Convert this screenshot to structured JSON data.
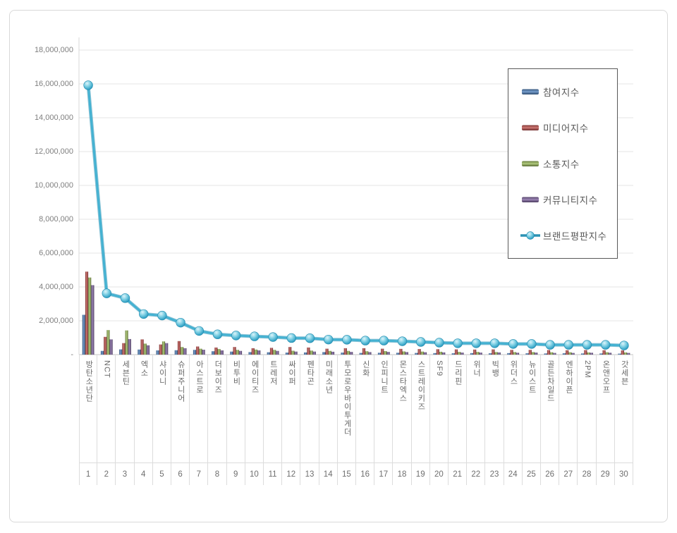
{
  "chart_data": {
    "type": "bar",
    "subtype": "grouped-bars-with-line",
    "title": "",
    "xlabel": "",
    "ylabel": "",
    "grid": true,
    "legend_position": "inside-right",
    "categories": [
      "방탄소년단",
      "NCT",
      "세븐틴",
      "엑소",
      "샤이니",
      "슈퍼주니어",
      "아스트로",
      "더보이즈",
      "비투비",
      "에이티즈",
      "트레저",
      "싸이퍼",
      "펜타곤",
      "미래소년",
      "투모로우바이투게더",
      "신화",
      "인피니트",
      "몬스타엑스",
      "스트레이키즈",
      "SF9",
      "드리핀",
      "위너",
      "빅뱅",
      "위더스",
      "뉴이스트",
      "골든차일드",
      "엔하이픈",
      "2PM",
      "온앤오프",
      "갓세븐"
    ],
    "ranks": [
      "1",
      "2",
      "3",
      "4",
      "5",
      "6",
      "7",
      "8",
      "9",
      "10",
      "11",
      "12",
      "13",
      "14",
      "15",
      "16",
      "17",
      "18",
      "19",
      "20",
      "21",
      "22",
      "23",
      "24",
      "25",
      "26",
      "27",
      "28",
      "29",
      "30"
    ],
    "series": [
      {
        "key": "participation",
        "name": "참여지수",
        "color": "#4f81bd",
        "type": "bar",
        "values": [
          2353080,
          220000,
          310000,
          300000,
          250000,
          260000,
          280000,
          200000,
          180000,
          150000,
          140000,
          120000,
          130000,
          150000,
          120000,
          100000,
          110000,
          110000,
          100000,
          90000,
          80000,
          90000,
          80000,
          90000,
          80000,
          70000,
          80000,
          70000,
          70000,
          60000
        ]
      },
      {
        "key": "media",
        "name": "미디어지수",
        "color": "#c0504d",
        "type": "bar",
        "values": [
          4904271,
          1050000,
          680000,
          900000,
          600000,
          800000,
          480000,
          420000,
          450000,
          380000,
          400000,
          450000,
          420000,
          350000,
          380000,
          380000,
          350000,
          340000,
          330000,
          320000,
          310000,
          300000,
          310000,
          280000,
          280000,
          270000,
          260000,
          270000,
          260000,
          250000
        ]
      },
      {
        "key": "communication",
        "name": "소통지수",
        "color": "#9bbb59",
        "type": "bar",
        "values": [
          4556161,
          1450000,
          1430000,
          650000,
          780000,
          450000,
          350000,
          330000,
          280000,
          300000,
          280000,
          230000,
          240000,
          220000,
          220000,
          200000,
          210000,
          190000,
          180000,
          170000,
          160000,
          160000,
          150000,
          150000,
          150000,
          140000,
          140000,
          130000,
          140000,
          130000
        ]
      },
      {
        "key": "community",
        "name": "커뮤니티지수",
        "color": "#8064a2",
        "type": "bar",
        "values": [
          4106228,
          900000,
          920000,
          550000,
          680000,
          380000,
          290000,
          250000,
          220000,
          250000,
          220000,
          180000,
          180000,
          170000,
          160000,
          150000,
          160000,
          150000,
          140000,
          130000,
          120000,
          120000,
          130000,
          110000,
          120000,
          100000,
          100000,
          110000,
          110000,
          100000
        ]
      },
      {
        "key": "brand-reputation",
        "name": "브랜드평판지수",
        "color": "#4bacc6",
        "type": "line",
        "values": [
          15919740,
          3620000,
          3340000,
          2400000,
          2310000,
          1890000,
          1400000,
          1200000,
          1130000,
          1080000,
          1040000,
          980000,
          970000,
          890000,
          880000,
          830000,
          830000,
          790000,
          750000,
          710000,
          670000,
          670000,
          670000,
          630000,
          630000,
          580000,
          580000,
          580000,
          580000,
          540000
        ]
      }
    ],
    "y_axis": {
      "min": 0,
      "max": 18000000,
      "tick_step": 2000000,
      "ticks": [
        {
          "label": "18,000,000",
          "value": 18000000
        },
        {
          "label": "16,000,000",
          "value": 16000000
        },
        {
          "label": "14,000,000",
          "value": 14000000
        },
        {
          "label": "12,000,000",
          "value": 12000000
        },
        {
          "label": "10,000,000",
          "value": 10000000
        },
        {
          "label": "8,000,000",
          "value": 8000000
        },
        {
          "label": "6,000,000",
          "value": 6000000
        },
        {
          "label": "4,000,000",
          "value": 4000000
        },
        {
          "label": "2,000,000",
          "value": 2000000
        },
        {
          "label": "-",
          "value": 0
        }
      ]
    }
  }
}
